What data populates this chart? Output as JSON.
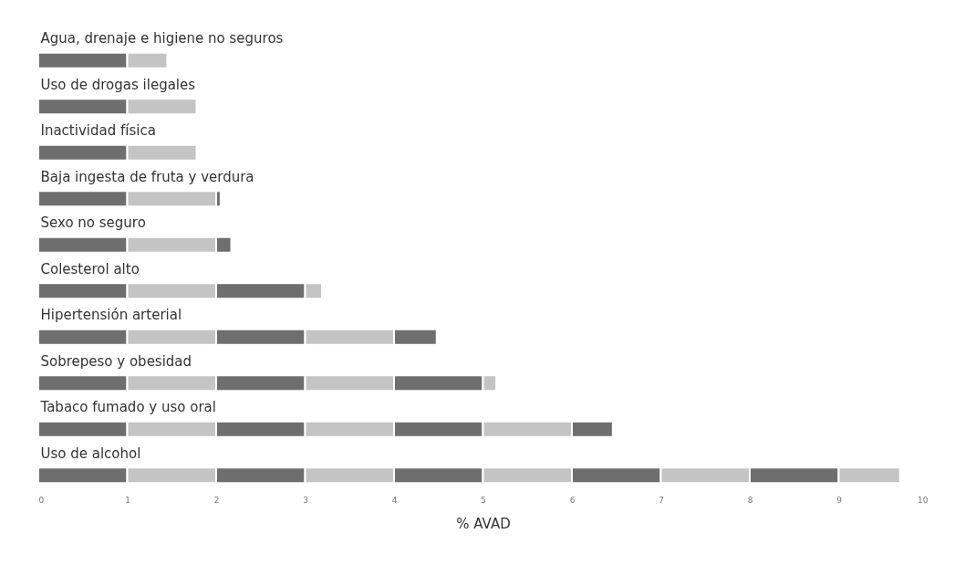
{
  "chart_data": {
    "type": "bar",
    "orientation": "horizontal",
    "stacked": true,
    "xlabel": "% AVAD",
    "categories": [
      "Agua, drenaje e higiene no seguros",
      "Uso de drogas ilegales",
      "Inactividad física",
      "Baja ingesta de fruta y verdura",
      "Sexo no seguro",
      "Colesterol alto",
      "Hipertensión arterial",
      "Sobrepeso y obesidad",
      "Tabaco fumado y uso oral",
      "Uso de alcohol"
    ],
    "series": [
      {
        "color": "#6e6e6e",
        "values": [
          1,
          1,
          1,
          1,
          1,
          1,
          1,
          1,
          1,
          1
        ]
      },
      {
        "color": "#c4c4c4",
        "values": [
          0.45,
          0.78,
          0.78,
          1,
          1,
          1,
          1,
          1,
          1,
          1
        ]
      },
      {
        "color": "#6e6e6e",
        "values": [
          null,
          null,
          null,
          0.05,
          0.17,
          1,
          1,
          1,
          1,
          1
        ]
      },
      {
        "color": "#c4c4c4",
        "values": [
          null,
          null,
          null,
          null,
          null,
          0.19,
          1,
          1,
          1,
          1
        ]
      },
      {
        "color": "#6e6e6e",
        "values": [
          null,
          null,
          null,
          null,
          null,
          null,
          0.48,
          1,
          1,
          1
        ]
      },
      {
        "color": "#c4c4c4",
        "values": [
          null,
          null,
          null,
          null,
          null,
          null,
          null,
          0.15,
          1,
          1
        ]
      },
      {
        "color": "#6e6e6e",
        "values": [
          null,
          null,
          null,
          null,
          null,
          null,
          null,
          null,
          0.46,
          1
        ]
      },
      {
        "color": "#c4c4c4",
        "values": [
          null,
          null,
          null,
          null,
          null,
          null,
          null,
          null,
          null,
          1
        ]
      },
      {
        "color": "#6e6e6e",
        "values": [
          null,
          null,
          null,
          null,
          null,
          null,
          null,
          null,
          null,
          1
        ]
      },
      {
        "color": "#c4c4c4",
        "values": [
          null,
          null,
          null,
          null,
          null,
          null,
          null,
          null,
          null,
          0.69
        ]
      }
    ],
    "xlim": [
      0,
      10
    ],
    "xticks": [
      0,
      1,
      2,
      3,
      4,
      5,
      6,
      7,
      8,
      9,
      10
    ]
  }
}
